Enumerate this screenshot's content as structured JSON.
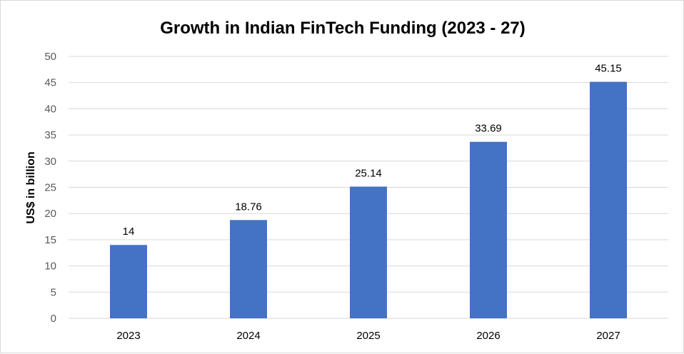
{
  "chart_data": {
    "type": "bar",
    "title": "Growth in Indian FinTech Funding (2023 - 27)",
    "xlabel": "",
    "ylabel": "US$ in billion",
    "categories": [
      "2023",
      "2024",
      "2025",
      "2026",
      "2027"
    ],
    "values": [
      14,
      18.76,
      25.14,
      33.69,
      45.15
    ],
    "data_labels": [
      "14",
      "18.76",
      "25.14",
      "33.69",
      "45.15"
    ],
    "ylim": [
      0,
      50
    ],
    "yticks": [
      0,
      5,
      10,
      15,
      20,
      25,
      30,
      35,
      40,
      45,
      50
    ],
    "grid": true,
    "legend": "none",
    "bar_color": "#4472c4"
  }
}
